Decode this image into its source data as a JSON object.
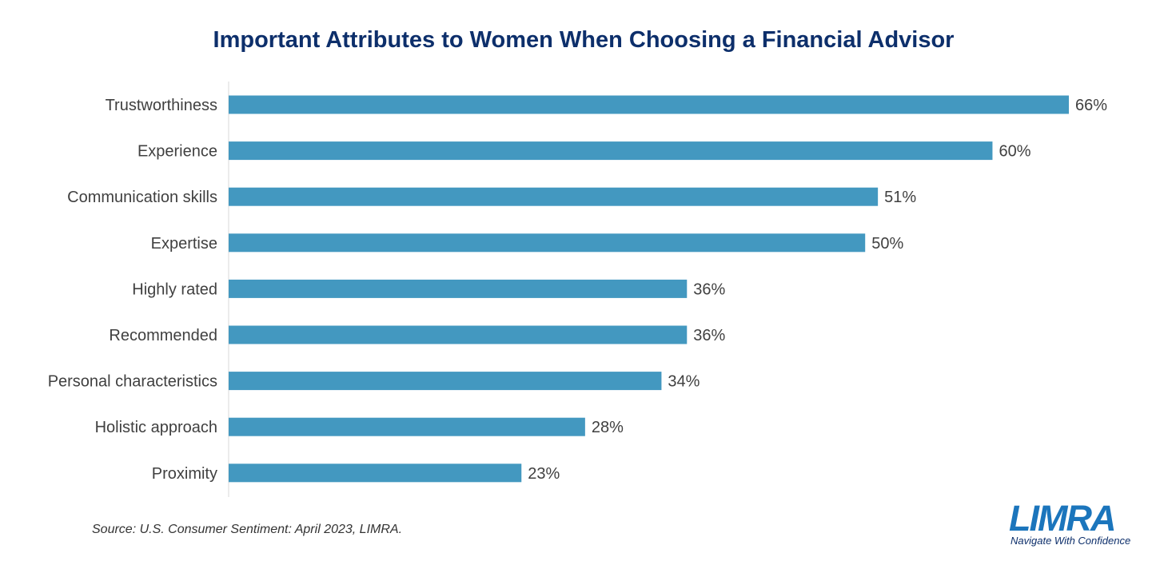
{
  "chart_data": {
    "type": "bar",
    "orientation": "horizontal",
    "title": "Important Attributes to Women When Choosing a Financial Advisor",
    "categories": [
      "Trustworthiness",
      "Experience",
      "Communication skills",
      "Expertise",
      "Highly rated",
      "Recommended",
      "Personal characteristics",
      "Holistic approach",
      "Proximity"
    ],
    "values": [
      66,
      60,
      51,
      50,
      36,
      36,
      34,
      28,
      23
    ],
    "data_labels": [
      "66%",
      "60%",
      "51%",
      "50%",
      "36%",
      "36%",
      "34%",
      "28%",
      "23%"
    ],
    "unit": "%",
    "xlim": [
      0,
      66
    ],
    "bar_color": "#4398c0",
    "grid": false,
    "legend": "none"
  },
  "source": "Source: U.S. Consumer Sentiment: April 2023, LIMRA.",
  "logo": {
    "name": "LIMRA",
    "tagline": "Navigate With Confidence",
    "color": "#1b75bc"
  }
}
